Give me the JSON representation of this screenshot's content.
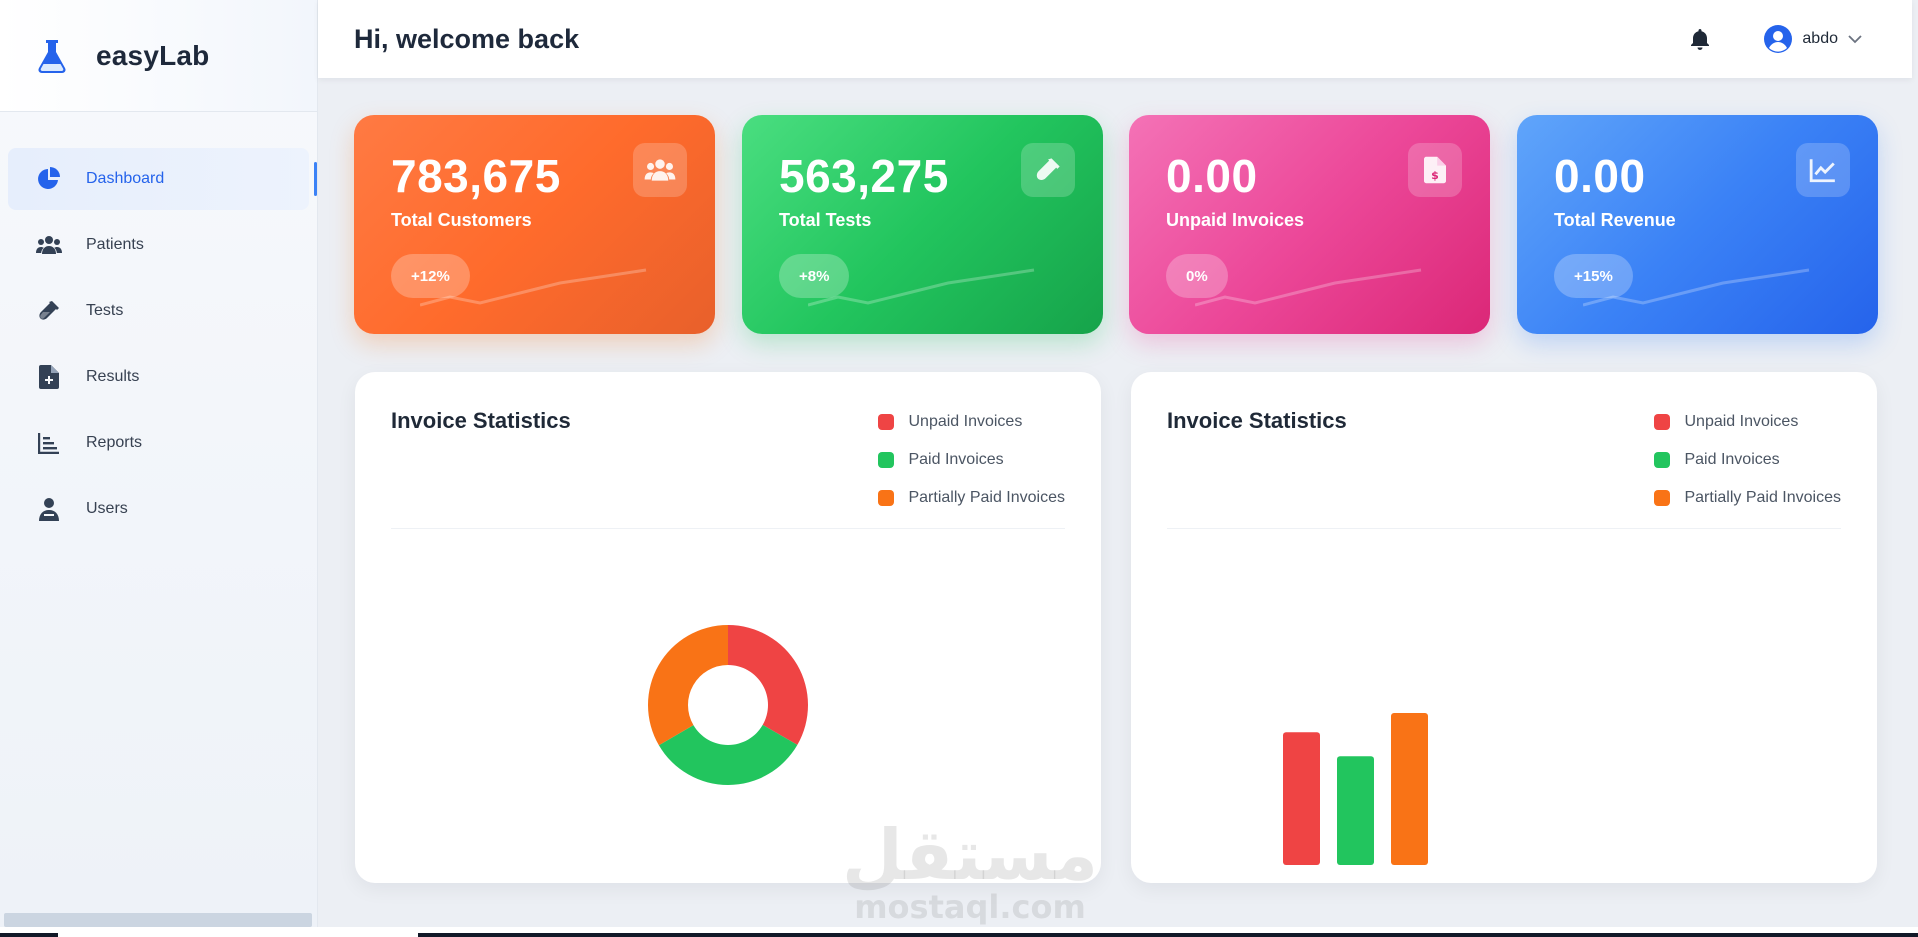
{
  "app": {
    "name": "easyLab"
  },
  "sidebar": {
    "items": [
      {
        "label": "Dashboard",
        "icon": "pie-chart-icon",
        "active": true
      },
      {
        "label": "Patients",
        "icon": "users-icon",
        "active": false
      },
      {
        "label": "Tests",
        "icon": "test-tube-icon",
        "active": false
      },
      {
        "label": "Results",
        "icon": "file-plus-icon",
        "active": false
      },
      {
        "label": "Reports",
        "icon": "bar-list-icon",
        "active": false
      },
      {
        "label": "Users",
        "icon": "user-doctor-icon",
        "active": false
      }
    ]
  },
  "header": {
    "greeting": "Hi, welcome back",
    "user": {
      "name": "abdo"
    }
  },
  "stats": [
    {
      "value": "783,675",
      "label": "Total Customers",
      "change": "+12%",
      "icon": "users-icon",
      "color": "#ff6b2c"
    },
    {
      "value": "563,275",
      "label": "Total Tests",
      "change": "+8%",
      "icon": "test-tube-icon",
      "color": "#22c55e"
    },
    {
      "value": "0.00",
      "label": "Unpaid Invoices",
      "change": "0%",
      "icon": "invoice-dollar-icon",
      "color": "#ec4899"
    },
    {
      "value": "0.00",
      "label": "Total Revenue",
      "change": "+15%",
      "icon": "trend-chart-icon",
      "color": "#3b82f6"
    }
  ],
  "panels": [
    {
      "title": "Invoice Statistics"
    },
    {
      "title": "Invoice Statistics"
    }
  ],
  "legend": [
    {
      "label": "Unpaid Invoices",
      "color": "#ef4444"
    },
    {
      "label": "Paid Invoices",
      "color": "#22c55e"
    },
    {
      "label": "Partially Paid Invoices",
      "color": "#f97316"
    }
  ],
  "chart_data": [
    {
      "type": "pie",
      "title": "Invoice Statistics",
      "categories": [
        "Unpaid Invoices",
        "Paid Invoices",
        "Partially Paid Invoices"
      ],
      "values": [
        33.3,
        33.3,
        33.4
      ],
      "colors": [
        "#ef4444",
        "#22c55e",
        "#f97316"
      ],
      "donut": true,
      "legend_position": "top-right"
    },
    {
      "type": "bar",
      "title": "Invoice Statistics",
      "categories": [
        "Unpaid Invoices",
        "Paid Invoices",
        "Partially Paid Invoices"
      ],
      "values": [
        0.83,
        0.68,
        0.95
      ],
      "colors": [
        "#ef4444",
        "#22c55e",
        "#f97316"
      ],
      "ylim": [
        0,
        1
      ],
      "grid": false,
      "legend_position": "top-right"
    }
  ],
  "watermark": {
    "arabic": "مستقل",
    "latin": "mostaql.com"
  }
}
